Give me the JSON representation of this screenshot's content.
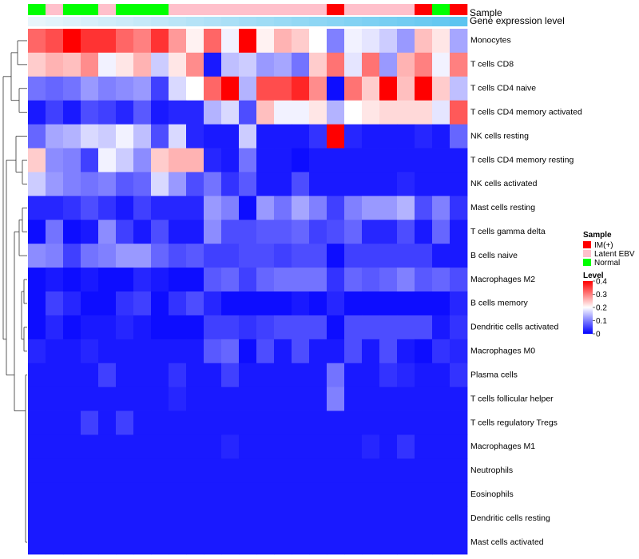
{
  "chart_data": {
    "type": "heatmap",
    "title": "",
    "annotation_rows": [
      {
        "label": "Sample"
      },
      {
        "label": "Gene expression level"
      }
    ],
    "sample_groups": [
      "Normal",
      "Latent EBV",
      "Normal",
      "Normal",
      "Latent EBV",
      "Normal",
      "Normal",
      "Normal",
      "Latent EBV",
      "Latent EBV",
      "Latent EBV",
      "Latent EBV",
      "Latent EBV",
      "Latent EBV",
      "Latent EBV",
      "Latent EBV",
      "Latent EBV",
      "IM(+)",
      "Latent EBV",
      "Latent EBV",
      "Latent EBV",
      "Latent EBV",
      "IM(+)",
      "Normal",
      "IM(+)"
    ],
    "expression_level": [
      0.0,
      0.04,
      0.08,
      0.12,
      0.16,
      0.2,
      0.24,
      0.28,
      0.32,
      0.36,
      0.4,
      0.44,
      0.48,
      0.52,
      0.56,
      0.6,
      0.64,
      0.68,
      0.72,
      0.76,
      0.8,
      0.84,
      0.88,
      0.92,
      1.0
    ],
    "rows": [
      "Monocytes",
      "T cells CD8",
      "T cells CD4 naive",
      "T cells CD4 memory activated",
      "NK cells resting",
      "T cells CD4 memory resting",
      "NK cells activated",
      "Mast cells resting",
      "T cells gamma delta",
      "B cells naive",
      "Macrophages M2",
      "B cells memory",
      "Dendritic cells activated",
      "Macrophages M0",
      "Plasma cells",
      "T cells follicular helper",
      "T cells regulatory  Tregs",
      "Macrophages M1",
      "Neutrophils",
      "Eosinophils",
      "Dendritic cells resting",
      "Mast cells activated"
    ],
    "values": [
      [
        0.32,
        0.34,
        0.4,
        0.36,
        0.36,
        0.32,
        0.3,
        0.36,
        0.28,
        0.21,
        0.32,
        0.19,
        0.4,
        0.21,
        0.26,
        0.24,
        0.2,
        0.1,
        0.19,
        0.18,
        0.16,
        0.12,
        0.25,
        0.22,
        0.13
      ],
      [
        0.24,
        0.26,
        0.25,
        0.29,
        0.19,
        0.22,
        0.26,
        0.16,
        0.22,
        0.29,
        0.02,
        0.15,
        0.16,
        0.12,
        0.13,
        0.09,
        0.24,
        0.31,
        0.18,
        0.31,
        0.12,
        0.26,
        0.3,
        0.19,
        0.3
      ],
      [
        0.09,
        0.08,
        0.09,
        0.12,
        0.1,
        0.11,
        0.12,
        0.05,
        0.17,
        0.2,
        0.32,
        0.4,
        0.14,
        0.34,
        0.34,
        0.37,
        0.29,
        0.01,
        0.31,
        0.24,
        0.4,
        0.25,
        0.4,
        0.24,
        0.15
      ],
      [
        0.02,
        0.05,
        0.02,
        0.06,
        0.05,
        0.03,
        0.07,
        0.02,
        0.03,
        0.03,
        0.14,
        0.17,
        0.06,
        0.25,
        0.19,
        0.19,
        0.22,
        0.14,
        0.2,
        0.22,
        0.23,
        0.23,
        0.23,
        0.18,
        0.33
      ],
      [
        0.08,
        0.13,
        0.14,
        0.17,
        0.16,
        0.19,
        0.15,
        0.06,
        0.17,
        0.03,
        0.02,
        0.02,
        0.16,
        0.02,
        0.02,
        0.02,
        0.04,
        0.4,
        0.03,
        0.02,
        0.02,
        0.02,
        0.03,
        0.02,
        0.08
      ],
      [
        0.24,
        0.11,
        0.1,
        0.05,
        0.19,
        0.16,
        0.11,
        0.24,
        0.26,
        0.26,
        0.03,
        0.02,
        0.09,
        0.02,
        0.02,
        0.01,
        0.02,
        0.02,
        0.02,
        0.02,
        0.02,
        0.02,
        0.02,
        0.02,
        0.02
      ],
      [
        0.16,
        0.12,
        0.1,
        0.09,
        0.1,
        0.07,
        0.08,
        0.17,
        0.12,
        0.06,
        0.09,
        0.04,
        0.07,
        0.02,
        0.02,
        0.06,
        0.02,
        0.02,
        0.02,
        0.02,
        0.02,
        0.03,
        0.02,
        0.02,
        0.02
      ],
      [
        0.03,
        0.03,
        0.04,
        0.06,
        0.04,
        0.02,
        0.05,
        0.03,
        0.03,
        0.03,
        0.12,
        0.1,
        0.01,
        0.12,
        0.09,
        0.13,
        0.1,
        0.05,
        0.1,
        0.12,
        0.12,
        0.14,
        0.06,
        0.1,
        0.04
      ],
      [
        0.01,
        0.09,
        0.01,
        0.02,
        0.11,
        0.05,
        0.02,
        0.06,
        0.02,
        0.02,
        0.11,
        0.06,
        0.06,
        0.07,
        0.07,
        0.08,
        0.05,
        0.06,
        0.08,
        0.03,
        0.03,
        0.06,
        0.02,
        0.08,
        0.02
      ],
      [
        0.11,
        0.1,
        0.05,
        0.09,
        0.1,
        0.12,
        0.12,
        0.08,
        0.06,
        0.07,
        0.05,
        0.05,
        0.06,
        0.06,
        0.05,
        0.06,
        0.06,
        0.01,
        0.05,
        0.05,
        0.05,
        0.05,
        0.05,
        0.02,
        0.02
      ],
      [
        0.01,
        0.02,
        0.01,
        0.02,
        0.01,
        0.01,
        0.03,
        0.02,
        0.01,
        0.01,
        0.07,
        0.08,
        0.05,
        0.08,
        0.09,
        0.09,
        0.09,
        0.04,
        0.08,
        0.07,
        0.08,
        0.1,
        0.07,
        0.08,
        0.06
      ],
      [
        0.01,
        0.05,
        0.03,
        0.01,
        0.01,
        0.04,
        0.05,
        0.01,
        0.04,
        0.06,
        0.03,
        0.01,
        0.01,
        0.01,
        0.01,
        0.02,
        0.01,
        0.03,
        0.01,
        0.01,
        0.01,
        0.01,
        0.01,
        0.01,
        0.03
      ],
      [
        0.01,
        0.03,
        0.01,
        0.02,
        0.02,
        0.03,
        0.02,
        0.01,
        0.01,
        0.01,
        0.05,
        0.05,
        0.04,
        0.05,
        0.06,
        0.06,
        0.06,
        0.01,
        0.06,
        0.06,
        0.06,
        0.06,
        0.06,
        0.02,
        0.04
      ],
      [
        0.03,
        0.02,
        0.02,
        0.03,
        0.02,
        0.02,
        0.02,
        0.02,
        0.02,
        0.02,
        0.07,
        0.08,
        0.01,
        0.06,
        0.02,
        0.06,
        0.02,
        0.02,
        0.06,
        0.02,
        0.06,
        0.02,
        0.01,
        0.04,
        0.03
      ],
      [
        0.02,
        0.02,
        0.02,
        0.02,
        0.05,
        0.02,
        0.02,
        0.02,
        0.04,
        0.02,
        0.02,
        0.05,
        0.02,
        0.02,
        0.02,
        0.02,
        0.02,
        0.09,
        0.02,
        0.02,
        0.04,
        0.03,
        0.02,
        0.02,
        0.04
      ],
      [
        0.02,
        0.02,
        0.02,
        0.02,
        0.02,
        0.02,
        0.02,
        0.02,
        0.03,
        0.02,
        0.02,
        0.02,
        0.02,
        0.02,
        0.02,
        0.02,
        0.02,
        0.1,
        0.02,
        0.02,
        0.02,
        0.02,
        0.02,
        0.02,
        0.02
      ],
      [
        0.02,
        0.02,
        0.02,
        0.05,
        0.02,
        0.05,
        0.02,
        0.02,
        0.02,
        0.02,
        0.02,
        0.02,
        0.02,
        0.02,
        0.02,
        0.02,
        0.02,
        0.02,
        0.02,
        0.02,
        0.02,
        0.02,
        0.02,
        0.02,
        0.02
      ],
      [
        0.02,
        0.02,
        0.02,
        0.02,
        0.02,
        0.02,
        0.02,
        0.02,
        0.02,
        0.02,
        0.02,
        0.03,
        0.02,
        0.02,
        0.02,
        0.02,
        0.02,
        0.02,
        0.02,
        0.03,
        0.02,
        0.04,
        0.02,
        0.02,
        0.02
      ],
      [
        0.02,
        0.02,
        0.02,
        0.02,
        0.02,
        0.02,
        0.02,
        0.02,
        0.02,
        0.02,
        0.02,
        0.02,
        0.02,
        0.02,
        0.02,
        0.02,
        0.02,
        0.02,
        0.02,
        0.02,
        0.02,
        0.02,
        0.02,
        0.02,
        0.02
      ],
      [
        0.02,
        0.02,
        0.02,
        0.02,
        0.02,
        0.02,
        0.02,
        0.02,
        0.02,
        0.02,
        0.02,
        0.02,
        0.02,
        0.02,
        0.02,
        0.02,
        0.02,
        0.02,
        0.02,
        0.02,
        0.02,
        0.02,
        0.02,
        0.02,
        0.02
      ],
      [
        0.02,
        0.02,
        0.02,
        0.02,
        0.02,
        0.02,
        0.02,
        0.02,
        0.02,
        0.02,
        0.02,
        0.02,
        0.02,
        0.02,
        0.02,
        0.02,
        0.02,
        0.02,
        0.02,
        0.02,
        0.02,
        0.02,
        0.02,
        0.02,
        0.02
      ],
      [
        0.02,
        0.02,
        0.02,
        0.02,
        0.02,
        0.02,
        0.02,
        0.02,
        0.02,
        0.02,
        0.02,
        0.02,
        0.02,
        0.02,
        0.02,
        0.02,
        0.02,
        0.02,
        0.02,
        0.02,
        0.02,
        0.02,
        0.02,
        0.02,
        0.02
      ]
    ],
    "color_scale": {
      "min": 0,
      "max": 0.4,
      "colors": [
        "#0000ff",
        "#ffffff",
        "#ff0000"
      ]
    },
    "expression_colors": [
      "#e8f5fb",
      "#5bc4f0"
    ],
    "legends": [
      {
        "title": "Sample",
        "entries": [
          {
            "label": "IM(+)",
            "color": "#ff0000"
          },
          {
            "label": "Latent EBV",
            "color": "#ffc0cb"
          },
          {
            "label": "Normal",
            "color": "#00ff00"
          }
        ]
      },
      {
        "title": "Level",
        "ticks": [
          "0.4",
          "0.3",
          "0.2",
          "0.1",
          "0"
        ],
        "tick_values": [
          0.4,
          0.3,
          0.2,
          0.1,
          0
        ]
      }
    ],
    "dendrogram": "rows clustered (hierarchical)",
    "xlabel": "",
    "ylabel": ""
  }
}
